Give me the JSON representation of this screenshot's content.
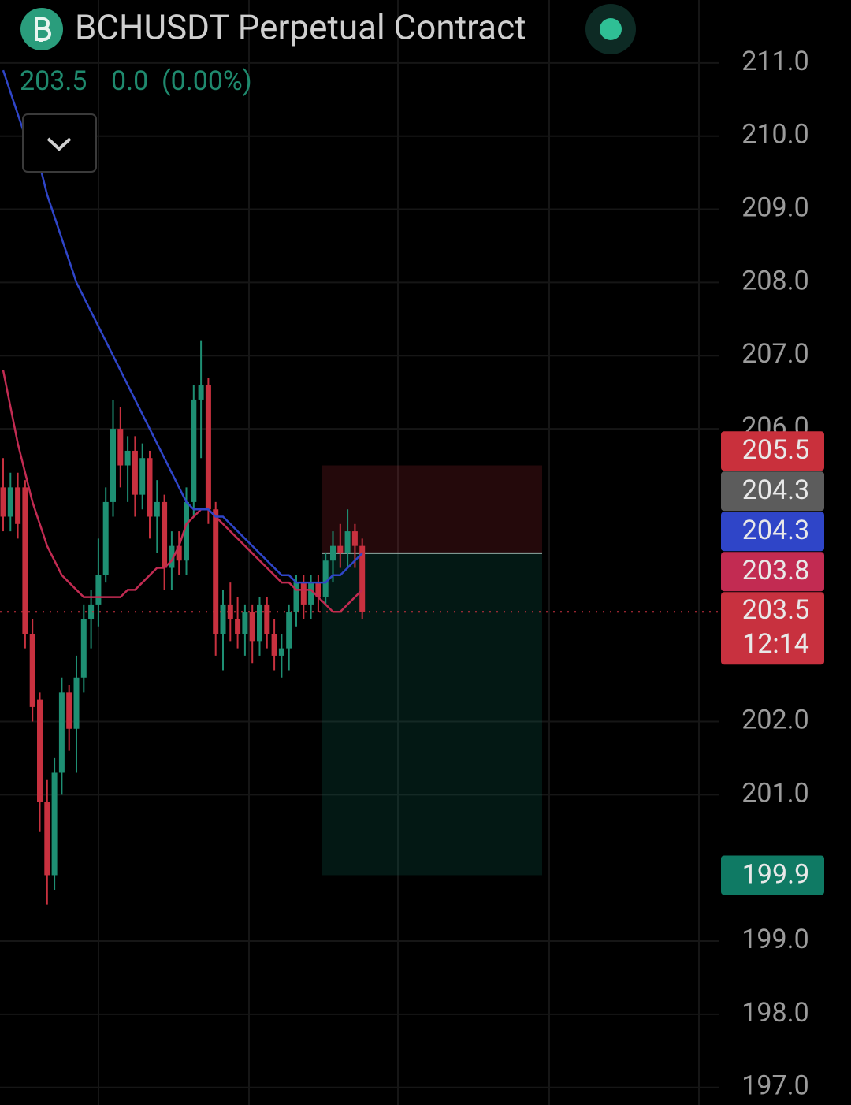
{
  "chart_data": {
    "type": "candlestick",
    "header": {
      "symbol": "BCHUSDT Perpetual Contract",
      "price": "203.5",
      "change": "0.0",
      "change_pct": "(0.00%)"
    },
    "up_color": "#1e8f73",
    "down_color": "#c8313f",
    "open": [
      205.2,
      204.8,
      205.2,
      205.2,
      203.2,
      202.3,
      200.9,
      199.9,
      201.3,
      202.4,
      201.9,
      202.6,
      203.4,
      203.6,
      204.0,
      205.0,
      206.0,
      205.5,
      205.7,
      205.1,
      205.6,
      204.8,
      205.0,
      204.1,
      204.4,
      204.2,
      205.0,
      206.4,
      206.6,
      204.9,
      203.2,
      203.6,
      203.4,
      203.2,
      203.5,
      203.1,
      203.6,
      203.2,
      202.9,
      203.0,
      203.5,
      203.9,
      203.6,
      203.9,
      203.7,
      204.2,
      204.4,
      204.3,
      204.6,
      204.4
    ],
    "high": [
      205.6,
      205.4,
      205.4,
      205.3,
      203.4,
      202.4,
      201.2,
      201.5,
      202.6,
      202.5,
      202.9,
      203.6,
      203.8,
      204.5,
      205.2,
      206.4,
      206.3,
      205.9,
      205.9,
      205.8,
      205.7,
      205.3,
      205.1,
      204.6,
      204.6,
      205.2,
      206.6,
      207.2,
      206.7,
      205.0,
      203.8,
      203.9,
      203.7,
      203.6,
      203.6,
      203.7,
      203.7,
      203.4,
      203.2,
      203.6,
      204.0,
      204.0,
      204.0,
      204.0,
      204.3,
      204.6,
      204.7,
      204.9,
      204.7,
      204.5
    ],
    "low": [
      204.6,
      204.6,
      204.5,
      203.0,
      202.0,
      200.5,
      199.5,
      199.7,
      201.0,
      201.6,
      201.3,
      202.4,
      203.0,
      203.3,
      203.9,
      204.8,
      205.2,
      205.0,
      204.8,
      204.9,
      204.5,
      204.3,
      203.8,
      203.8,
      204.0,
      204.0,
      204.8,
      205.6,
      204.7,
      202.9,
      202.7,
      203.1,
      203.0,
      202.9,
      202.8,
      202.9,
      203.0,
      202.7,
      202.6,
      202.7,
      203.3,
      203.4,
      203.4,
      203.5,
      203.6,
      203.9,
      204.1,
      204.1,
      204.1,
      203.4
    ],
    "close": [
      204.8,
      205.2,
      204.7,
      203.2,
      202.2,
      200.9,
      199.9,
      201.3,
      202.4,
      201.9,
      202.6,
      203.4,
      203.6,
      204.0,
      205.0,
      206.0,
      205.5,
      205.7,
      205.1,
      205.6,
      204.8,
      205.0,
      204.1,
      204.4,
      204.2,
      205.0,
      206.4,
      206.6,
      204.9,
      203.2,
      203.6,
      203.4,
      203.2,
      203.5,
      203.1,
      203.6,
      203.2,
      202.9,
      203.0,
      203.5,
      203.9,
      203.6,
      203.9,
      203.7,
      204.2,
      204.4,
      204.3,
      204.6,
      204.4,
      203.5
    ],
    "series": [
      {
        "color": "#c22b52",
        "values": [
          206.8,
          206.3,
          205.8,
          205.4,
          205.0,
          204.7,
          204.4,
          204.2,
          204.0,
          203.9,
          203.8,
          203.7,
          203.7,
          203.7,
          203.7,
          203.7,
          203.7,
          203.8,
          203.8,
          203.9,
          204.0,
          204.1,
          204.1,
          204.2,
          204.4,
          204.7,
          204.8,
          204.9,
          204.9,
          204.8,
          204.7,
          204.6,
          204.5,
          204.4,
          204.3,
          204.2,
          204.1,
          204.0,
          203.9,
          203.9,
          203.8,
          203.8,
          203.8,
          203.7,
          203.6,
          203.5,
          203.5,
          203.6,
          203.7,
          203.8
        ]
      },
      {
        "color": "#2f45c8",
        "values": [
          210.9,
          210.6,
          210.3,
          210.0,
          209.8,
          209.6,
          209.2,
          208.9,
          208.6,
          208.3,
          208.0,
          207.8,
          207.6,
          207.4,
          207.2,
          207.0,
          206.8,
          206.6,
          206.4,
          206.2,
          206.0,
          205.8,
          205.6,
          205.4,
          205.2,
          205.0,
          204.9,
          204.9,
          204.9,
          204.8,
          204.8,
          204.7,
          204.6,
          204.5,
          204.4,
          204.3,
          204.2,
          204.1,
          204.0,
          204.0,
          203.9,
          203.9,
          203.9,
          203.9,
          203.9,
          204.0,
          204.0,
          204.1,
          204.2,
          204.3
        ]
      }
    ],
    "position": {
      "entry": 204.3,
      "stop": 205.5,
      "target": 199.9,
      "entry_color": "#5c5c5c",
      "stop_color": "#c9303c",
      "target_color": "#0f7a64"
    },
    "countdown": "12:14",
    "ylim": [
      196.76,
      211.86
    ],
    "yticks": [
      {
        "value": 197,
        "label": "197.0"
      },
      {
        "value": 198,
        "label": "198.0"
      },
      {
        "value": 199,
        "label": "199.0"
      },
      {
        "value": 201,
        "label": "201.0"
      },
      {
        "value": 202,
        "label": "202.0"
      },
      {
        "value": 206,
        "label": "206.0"
      },
      {
        "value": 207,
        "label": "207.0"
      },
      {
        "value": 208,
        "label": "208.0"
      },
      {
        "value": 209,
        "label": "209.0"
      },
      {
        "value": 210,
        "label": "210.0"
      },
      {
        "value": 211,
        "label": "211.0"
      }
    ],
    "grid": true
  }
}
